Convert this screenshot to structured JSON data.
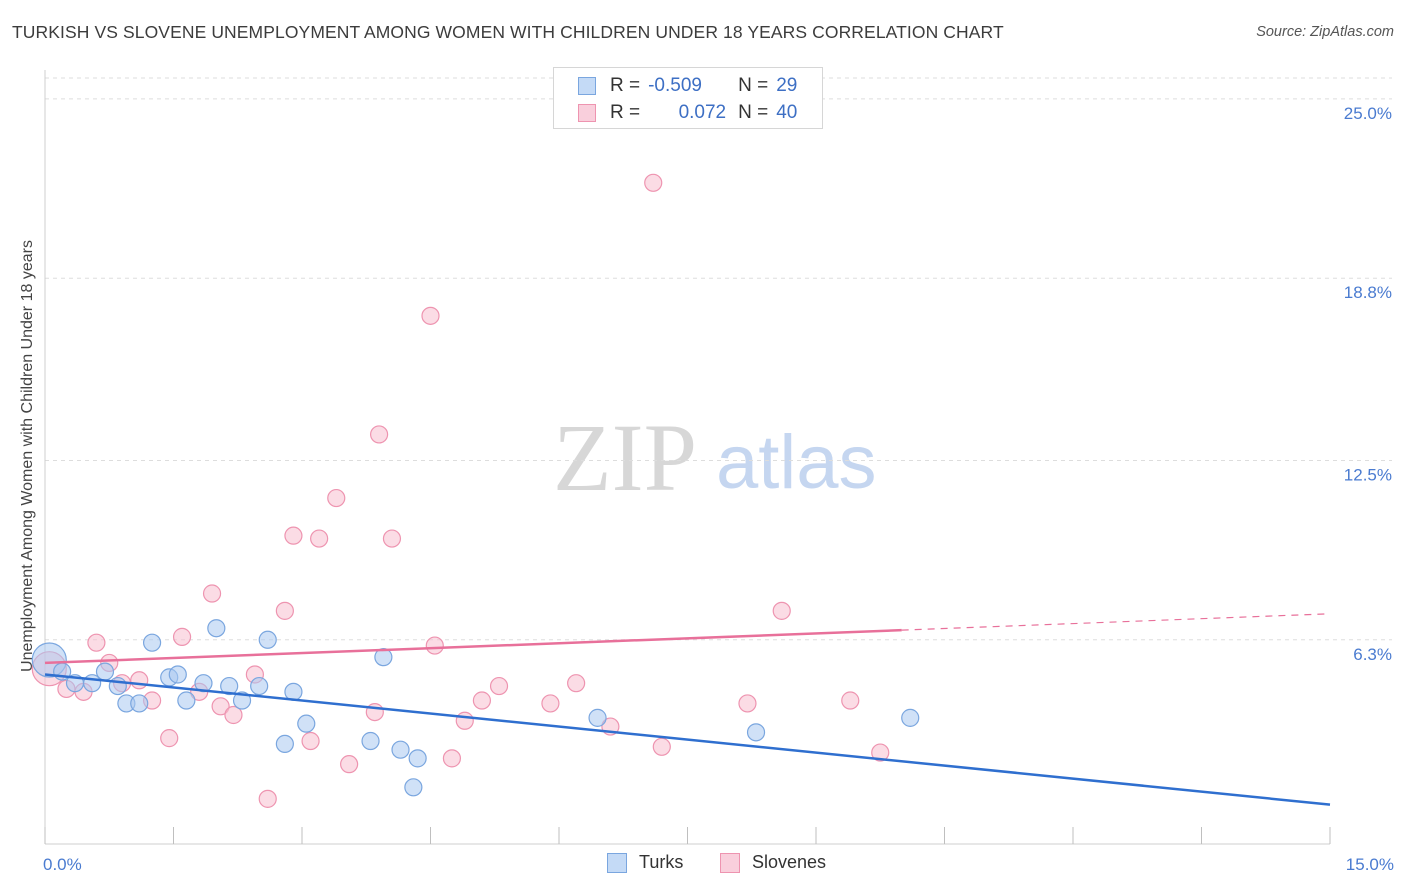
{
  "title": "TURKISH VS SLOVENE UNEMPLOYMENT AMONG WOMEN WITH CHILDREN UNDER 18 YEARS CORRELATION CHART",
  "source": "Source: ZipAtlas.com",
  "watermark": {
    "zip": "ZIP",
    "atlas": "atlas"
  },
  "colors": {
    "turks_fill": "#a9c8f0",
    "turks_stroke": "#7aa6df",
    "turks_line": "#2f6fcf",
    "slovenes_fill": "#f7bfd0",
    "slovenes_stroke": "#ee94b0",
    "slovenes_line": "#e8709a",
    "axis_label": "#4a7bd0",
    "grid": "#dddddd"
  },
  "legend": {
    "row1": {
      "r_label": "R =",
      "r_value": "-0.509",
      "n_label": "N =",
      "n_value": "29"
    },
    "row2": {
      "r_label": "R =",
      "r_value": "0.072",
      "n_label": "N =",
      "n_value": "40"
    }
  },
  "chart_data": {
    "type": "scatter",
    "title": "TURKISH VS SLOVENE UNEMPLOYMENT AMONG WOMEN WITH CHILDREN UNDER 18 YEARS CORRELATION CHART",
    "xlabel": "",
    "ylabel": "Unemployment Among Women with Children Under 18 years",
    "xlim": [
      0,
      15
    ],
    "ylim": [
      0,
      26
    ],
    "x_tick_labels": [
      "0.0%",
      "15.0%"
    ],
    "y_ticks": [
      6.3,
      12.5,
      18.8,
      25.0
    ],
    "y_tick_labels": [
      "6.3%",
      "12.5%",
      "18.8%",
      "25.0%"
    ],
    "grid": "horizontal dashed",
    "legend_position": "bottom-center",
    "series": [
      {
        "name": "Turks",
        "r": -0.509,
        "n": 29,
        "trend": {
          "x": [
            0,
            15
          ],
          "y": [
            5.1,
            0.6
          ],
          "dashed_from": null
        },
        "points": [
          [
            0.05,
            5.6
          ],
          [
            0.2,
            5.2
          ],
          [
            0.35,
            4.8
          ],
          [
            0.55,
            4.8
          ],
          [
            0.7,
            5.2
          ],
          [
            0.85,
            4.7
          ],
          [
            0.95,
            4.1
          ],
          [
            1.1,
            4.1
          ],
          [
            1.25,
            6.2
          ],
          [
            1.45,
            5.0
          ],
          [
            1.55,
            5.1
          ],
          [
            1.65,
            4.2
          ],
          [
            1.85,
            4.8
          ],
          [
            2.0,
            6.7
          ],
          [
            2.15,
            4.7
          ],
          [
            2.3,
            4.2
          ],
          [
            2.5,
            4.7
          ],
          [
            2.6,
            6.3
          ],
          [
            2.8,
            2.7
          ],
          [
            2.9,
            4.5
          ],
          [
            3.05,
            3.4
          ],
          [
            3.8,
            2.8
          ],
          [
            3.95,
            5.7
          ],
          [
            4.15,
            2.5
          ],
          [
            4.3,
            1.2
          ],
          [
            4.35,
            2.2
          ],
          [
            6.45,
            3.6
          ],
          [
            8.3,
            3.1
          ],
          [
            10.1,
            3.6
          ]
        ]
      },
      {
        "name": "Slovenes",
        "r": 0.072,
        "n": 40,
        "trend": {
          "x": [
            0,
            15
          ],
          "y": [
            5.5,
            7.2
          ],
          "dashed_from": 10.0
        },
        "points": [
          [
            0.05,
            5.3
          ],
          [
            0.25,
            4.6
          ],
          [
            0.45,
            4.5
          ],
          [
            0.6,
            6.2
          ],
          [
            0.75,
            5.5
          ],
          [
            0.9,
            4.8
          ],
          [
            1.1,
            4.9
          ],
          [
            1.25,
            4.2
          ],
          [
            1.45,
            2.9
          ],
          [
            1.6,
            6.4
          ],
          [
            1.8,
            4.5
          ],
          [
            1.95,
            7.9
          ],
          [
            2.05,
            4.0
          ],
          [
            2.2,
            3.7
          ],
          [
            2.45,
            5.1
          ],
          [
            2.6,
            0.8
          ],
          [
            2.8,
            7.3
          ],
          [
            2.9,
            9.9
          ],
          [
            3.1,
            2.8
          ],
          [
            3.2,
            9.8
          ],
          [
            3.4,
            11.2
          ],
          [
            3.55,
            2.0
          ],
          [
            3.85,
            3.8
          ],
          [
            3.9,
            13.4
          ],
          [
            4.05,
            9.8
          ],
          [
            4.55,
            6.1
          ],
          [
            4.5,
            17.5
          ],
          [
            4.75,
            2.2
          ],
          [
            4.9,
            3.5
          ],
          [
            5.1,
            4.2
          ],
          [
            5.3,
            4.7
          ],
          [
            5.9,
            4.1
          ],
          [
            6.2,
            4.8
          ],
          [
            6.6,
            3.3
          ],
          [
            7.1,
            22.1
          ],
          [
            7.2,
            2.6
          ],
          [
            8.2,
            4.1
          ],
          [
            8.6,
            7.3
          ],
          [
            9.4,
            4.2
          ],
          [
            9.75,
            2.4
          ]
        ]
      }
    ]
  },
  "bottom_legend": {
    "item1": "Turks",
    "item2": "Slovenes"
  }
}
